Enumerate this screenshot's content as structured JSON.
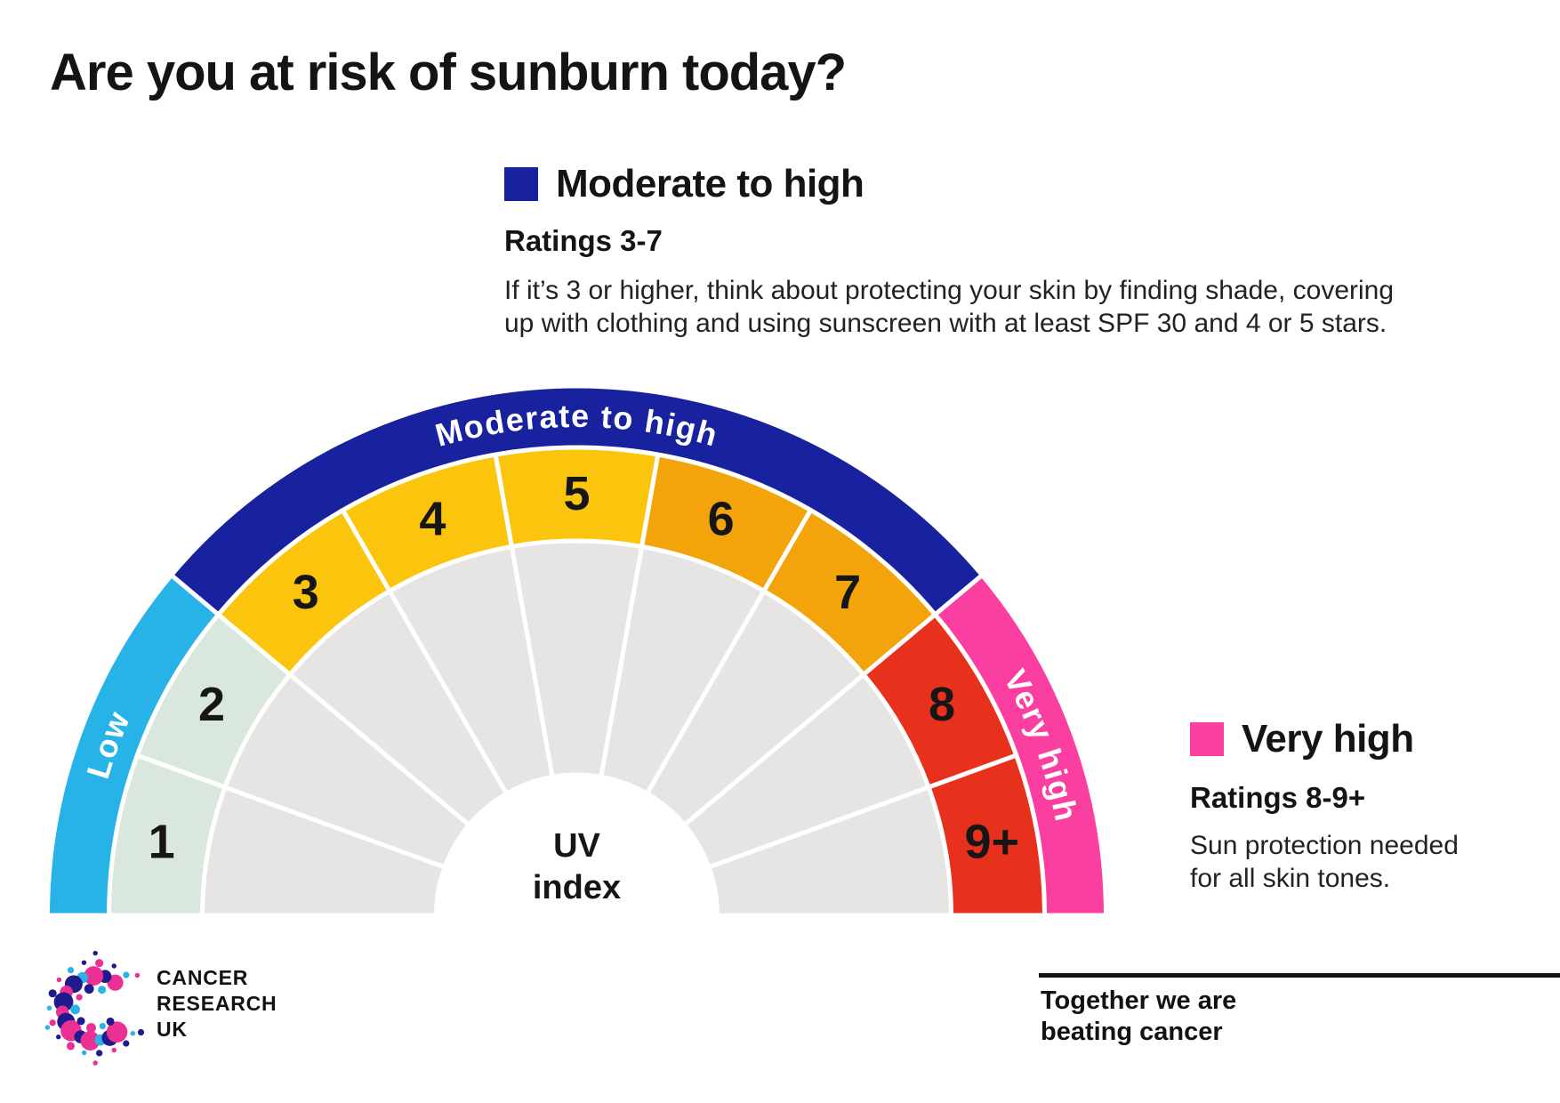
{
  "page": {
    "title": "Are you at risk of sunburn today?"
  },
  "legend_moderate": {
    "title": "Moderate to high",
    "ratings": "Ratings 3-7",
    "body_line1": "If it’s 3 or higher, think about protecting your skin by finding shade, covering",
    "body_line2": "up with clothing and using sunscreen with at least SPF 30 and 4 or 5 stars.",
    "swatch_color": "#18219E"
  },
  "legend_very_high": {
    "title": "Very high",
    "ratings": "Ratings 8-9+",
    "body_line1": "Sun protection needed",
    "body_line2": "for all skin tones.",
    "swatch_color": "#FB3FA0"
  },
  "chart_data": {
    "type": "gauge",
    "title": "UV index",
    "center_label_line1": "UV",
    "center_label_line2": "index",
    "segments": [
      {
        "label": "1",
        "color": "#D9E7DC"
      },
      {
        "label": "2",
        "color": "#D9E7DC"
      },
      {
        "label": "3",
        "color": "#FCC50D"
      },
      {
        "label": "4",
        "color": "#FCC50D"
      },
      {
        "label": "5",
        "color": "#FCC50D"
      },
      {
        "label": "6",
        "color": "#F3A40B"
      },
      {
        "label": "7",
        "color": "#F3A40B"
      },
      {
        "label": "8",
        "color": "#E7311C"
      },
      {
        "label": "9+",
        "color": "#E7311C"
      }
    ],
    "bands": [
      {
        "label": "Low",
        "color": "#28B3E8",
        "from": 1,
        "to": 2
      },
      {
        "label": "Moderate to high",
        "color": "#18219E",
        "from": 3,
        "to": 7
      },
      {
        "label": "Very high",
        "color": "#FB3FA0",
        "from": 8,
        "to": 9
      }
    ],
    "colors": {
      "track": "#E6E5E3",
      "gap": "#FFFFFF",
      "number_text": "#161616",
      "center_text": "#161616",
      "band_label_text": "#FFFFFF"
    }
  },
  "footer": {
    "logo_lines": [
      "CANCER",
      "RESEARCH",
      "UK"
    ],
    "logo_palette": {
      "pink": "#EC2F92",
      "navy": "#1F1B8C",
      "cyan": "#2BB3E7"
    },
    "tagline_line1": "Together we are",
    "tagline_line2": "beating cancer"
  }
}
